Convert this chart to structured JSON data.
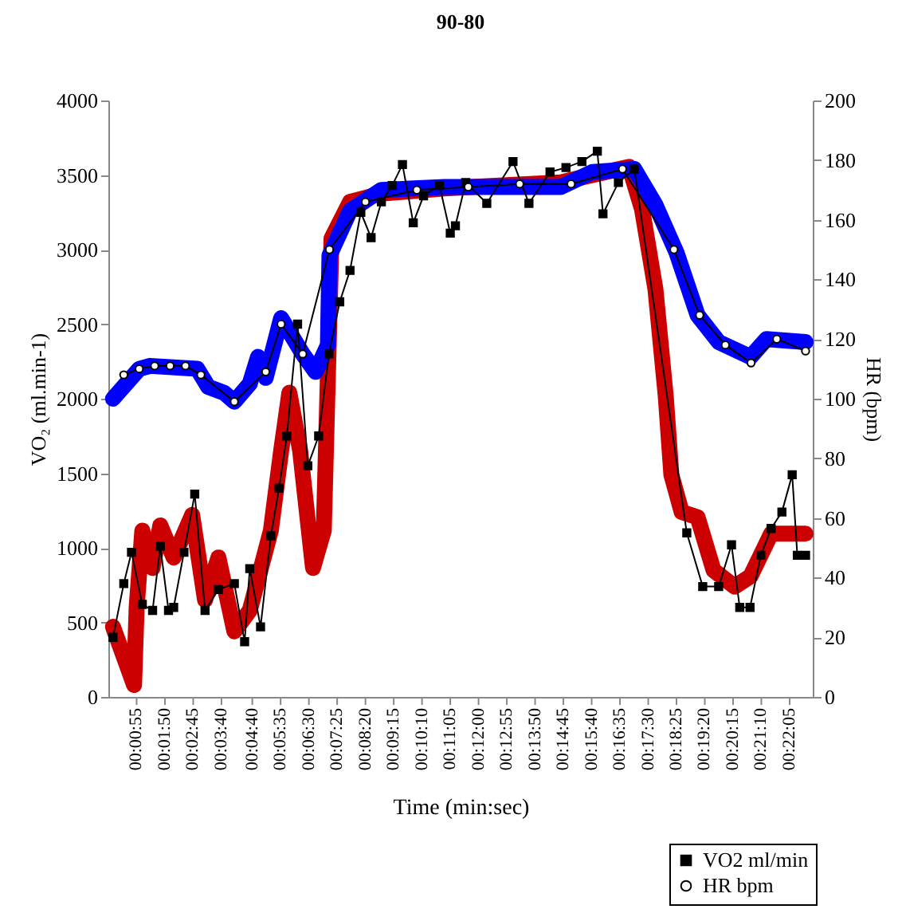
{
  "chart_data": {
    "type": "line",
    "title": "90-80",
    "xlabel": "Time (min:sec)",
    "ylabel": "VO₂ (ml.min-1)",
    "y2label": "HR (bpm)",
    "xlim": [
      0,
      1370
    ],
    "ylim": [
      0,
      4000
    ],
    "y2lim": [
      0,
      200
    ],
    "xticks": [
      {
        "value": 55,
        "label": "00:00:55"
      },
      {
        "value": 110,
        "label": "00:01:50"
      },
      {
        "value": 165,
        "label": "00:02:45"
      },
      {
        "value": 220,
        "label": "00:03:40"
      },
      {
        "value": 280,
        "label": "00:04:40"
      },
      {
        "value": 335,
        "label": "00:05:35"
      },
      {
        "value": 390,
        "label": "00:06:30"
      },
      {
        "value": 445,
        "label": "00:07:25"
      },
      {
        "value": 500,
        "label": "00:08:20"
      },
      {
        "value": 555,
        "label": "00:09:15"
      },
      {
        "value": 610,
        "label": "00:10:10"
      },
      {
        "value": 665,
        "label": "00:11:05"
      },
      {
        "value": 720,
        "label": "00:12:00"
      },
      {
        "value": 775,
        "label": "00:12:55"
      },
      {
        "value": 830,
        "label": "00:13:50"
      },
      {
        "value": 885,
        "label": "00:14:45"
      },
      {
        "value": 940,
        "label": "00:15:40"
      },
      {
        "value": 995,
        "label": "00:16:35"
      },
      {
        "value": 1050,
        "label": "00:17:30"
      },
      {
        "value": 1105,
        "label": "00:18:25"
      },
      {
        "value": 1160,
        "label": "00:19:20"
      },
      {
        "value": 1215,
        "label": "00:20:15"
      },
      {
        "value": 1270,
        "label": "00:21:10"
      },
      {
        "value": 1325,
        "label": "00:22:05"
      }
    ],
    "yticks": [
      0,
      500,
      1000,
      1500,
      2000,
      2500,
      3000,
      3500,
      4000
    ],
    "y2ticks": [
      0,
      20,
      40,
      60,
      80,
      100,
      120,
      140,
      160,
      180,
      200
    ],
    "legend": "bottom right",
    "series": [
      {
        "color": "#cc0000",
        "marker": "none",
        "x": [
          9,
          50,
          55,
          66,
          86,
          101,
          127,
          163,
          188,
          214,
          245,
          275,
          316,
          336,
          352,
          373,
          398,
          419,
          434,
          470,
          531,
          654,
          880,
          941,
          1013,
          1038,
          1064,
          1084,
          1095,
          1115,
          1146,
          1177,
          1218,
          1249,
          1289,
          1356
        ],
        "values": [
          470,
          80,
          600,
          1115,
          865,
          1150,
          935,
          1220,
          650,
          935,
          440,
          580,
          1115,
          1650,
          2040,
          1650,
          865,
          1115,
          3075,
          3320,
          3375,
          3410,
          3450,
          3500,
          3555,
          3270,
          2735,
          2020,
          1490,
          1240,
          1205,
          850,
          740,
          810,
          1095,
          1095
        ]
      },
      {
        "color": "#0000ff",
        "marker": "none",
        "axis": "y2",
        "x": [
          9,
          60,
          81,
          173,
          194,
          225,
          245,
          275,
          291,
          306,
          336,
          378,
          403,
          427,
          430,
          470,
          531,
          654,
          880,
          941,
          1023,
          1064,
          1105,
          1146,
          1187,
          1249,
          1280,
          1356
        ],
        "values": [
          100,
          110,
          111,
          110,
          104,
          102,
          99,
          105,
          114,
          107,
          127,
          115,
          109,
          118,
          148,
          163,
          170,
          171,
          171,
          176,
          177,
          165,
          149,
          128,
          119,
          114,
          120,
          119
        ]
      },
      {
        "name": "VO2 ml/min",
        "color": "#000000",
        "marker": "square",
        "x": [
          9,
          30,
          45,
          66,
          86,
          101,
          117,
          127,
          147,
          168,
          188,
          214,
          245,
          265,
          275,
          296,
          316,
          332,
          347,
          368,
          388,
          409,
          429,
          450,
          470,
          491,
          511,
          531,
          552,
          572,
          593,
          613,
          644,
          665,
          675,
          695,
          736,
          787,
          818,
          859,
          890,
          921,
          951,
          962,
          992,
          1023,
          1125,
          1156,
          1187,
          1212,
          1228,
          1248,
          1269,
          1289,
          1310,
          1330,
          1340,
          1356
        ],
        "values": [
          400,
          760,
          970,
          620,
          580,
          1010,
          580,
          600,
          970,
          1360,
          580,
          720,
          760,
          370,
          860,
          470,
          1080,
          1400,
          1750,
          2500,
          1550,
          1750,
          2300,
          2650,
          2860,
          3250,
          3080,
          3320,
          3430,
          3570,
          3180,
          3360,
          3430,
          3110,
          3160,
          3450,
          3310,
          3590,
          3310,
          3520,
          3550,
          3590,
          3660,
          3240,
          3450,
          3540,
          1100,
          740,
          740,
          1020,
          600,
          600,
          950,
          1130,
          1240,
          1490,
          950,
          950
        ]
      },
      {
        "name": "HR bpm",
        "color": "#000000",
        "marker": "circle",
        "axis": "y2",
        "x": [
          30,
          60,
          90,
          120,
          150,
          180,
          245,
          306,
          336,
          378,
          430,
          500,
          600,
          700,
          800,
          900,
          1000,
          1100,
          1150,
          1200,
          1250,
          1300,
          1356
        ],
        "values": [
          108,
          110,
          111,
          111,
          111,
          108,
          99,
          109,
          125,
          115,
          150,
          166,
          170,
          171,
          172,
          172,
          177,
          150,
          128,
          118,
          112,
          120,
          116
        ]
      }
    ]
  }
}
